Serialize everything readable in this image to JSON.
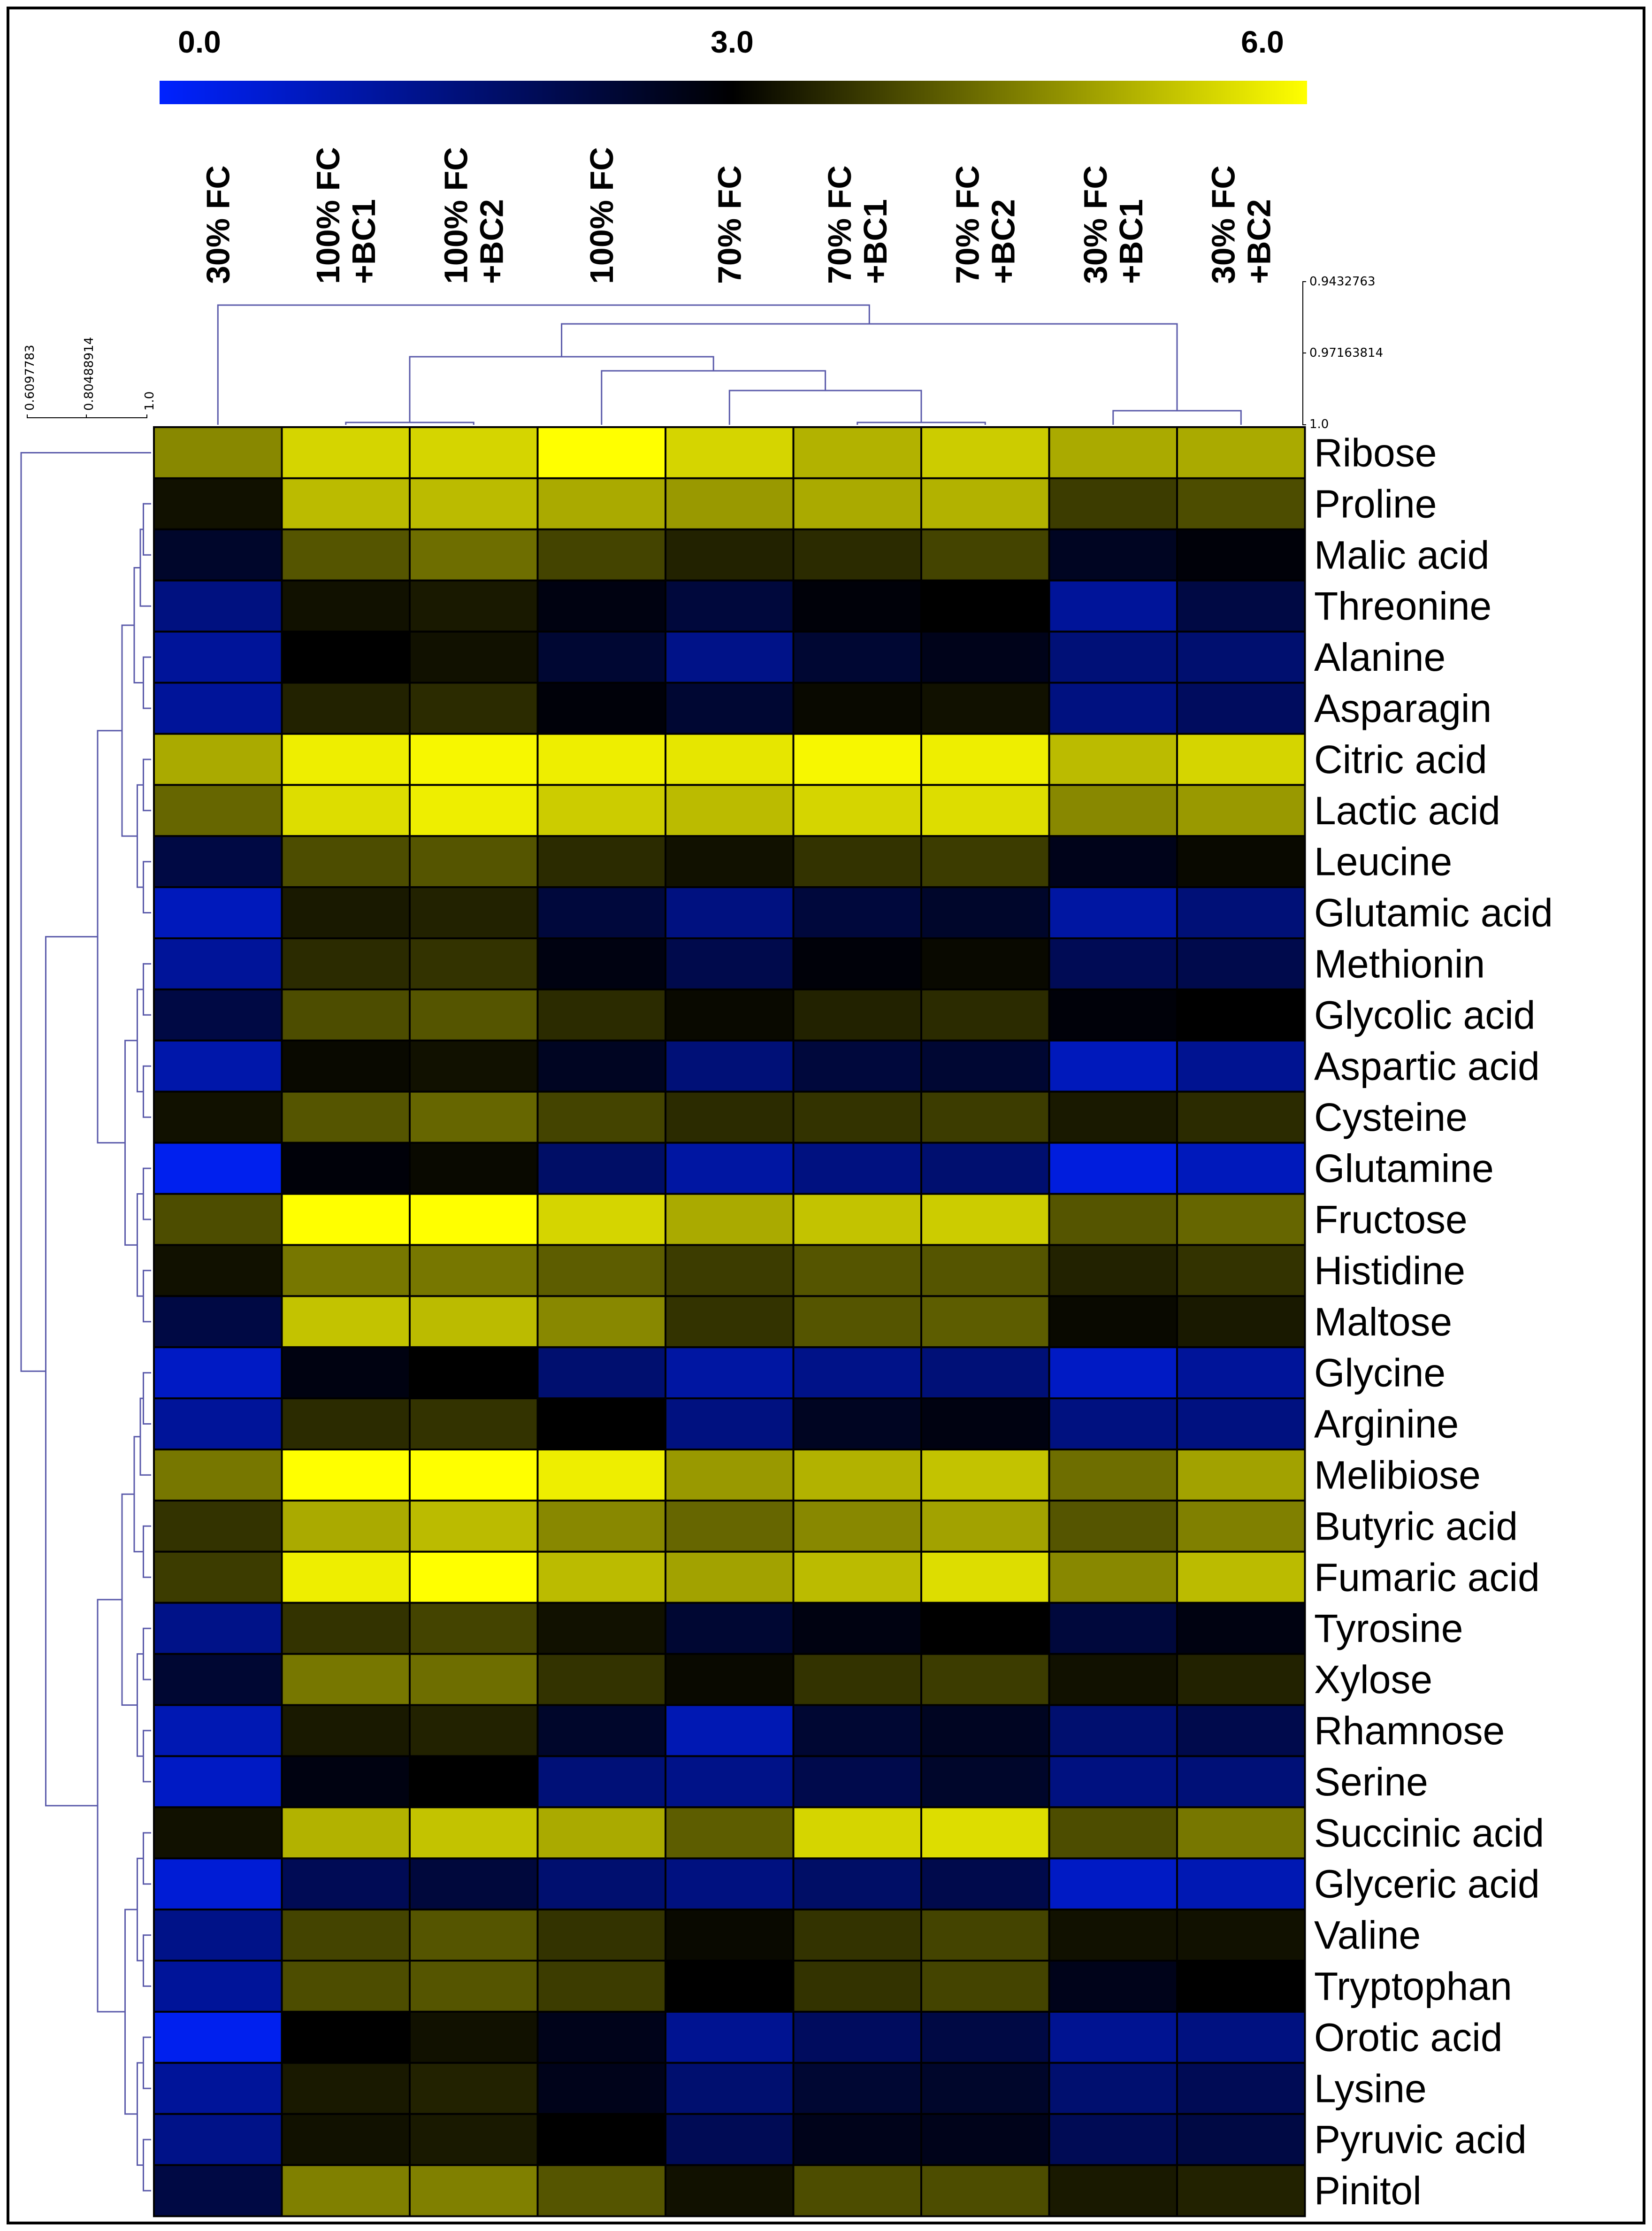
{
  "chart_data": {
    "type": "heatmap",
    "color_scale": {
      "min": 0.0,
      "mid": 3.0,
      "max": 6.0,
      "min_label": "0.0",
      "mid_label": "3.0",
      "max_label": "6.0",
      "min_color": "#0022ff",
      "mid_color": "#000000",
      "max_color": "#ffff00"
    },
    "columns": [
      [
        "30% FC"
      ],
      [
        "100% FC",
        "+BC1"
      ],
      [
        "100% FC",
        "+BC2"
      ],
      [
        "100% FC"
      ],
      [
        "70% FC"
      ],
      [
        "70% FC",
        "+BC1"
      ],
      [
        "70% FC",
        "+BC2"
      ],
      [
        "30% FC",
        "+BC1"
      ],
      [
        "30% FC",
        "+BC2"
      ]
    ],
    "rows": [
      "Ribose",
      "Proline",
      "Malic acid",
      "Threonine",
      "Alanine",
      "Asparagin",
      "Citric acid",
      "Lactic acid",
      "Leucine",
      "Glutamic acid",
      "Methionin",
      "Glycolic acid",
      "Aspartic acid",
      "Cysteine",
      "Glutamine",
      "Fructose",
      "Histidine",
      "Maltose",
      "Glycine",
      "Arginine",
      "Melibiose",
      "Butyric acid",
      "Fumaric acid",
      "Tyrosine",
      "Xylose",
      "Rhamnose",
      "Serine",
      "Succinic acid",
      "Glyceric acid",
      "Valine",
      "Tryptophan",
      "Orotic acid",
      "Lysine",
      "Pyruvic acid",
      "Pinitol"
    ],
    "values": [
      [
        4.6,
        5.5,
        5.5,
        6.0,
        5.5,
        5.1,
        5.4,
        5.0,
        5.0
      ],
      [
        3.2,
        5.2,
        5.2,
        5.0,
        4.8,
        5.0,
        5.1,
        3.7,
        3.9
      ],
      [
        2.5,
        4.0,
        4.3,
        3.8,
        3.4,
        3.5,
        3.8,
        2.6,
        2.9
      ],
      [
        1.5,
        3.2,
        3.3,
        2.8,
        2.3,
        2.9,
        3.0,
        1.2,
        2.2
      ],
      [
        1.2,
        3.0,
        3.2,
        2.4,
        1.4,
        2.4,
        2.7,
        1.6,
        1.7
      ],
      [
        1.2,
        3.4,
        3.5,
        2.9,
        2.4,
        3.1,
        3.2,
        1.5,
        1.9
      ],
      [
        5.0,
        5.8,
        5.9,
        5.8,
        5.7,
        5.9,
        5.8,
        5.2,
        5.5
      ],
      [
        4.2,
        5.6,
        5.8,
        5.4,
        5.2,
        5.5,
        5.6,
        4.6,
        4.8
      ],
      [
        2.2,
        3.9,
        4.0,
        3.5,
        3.2,
        3.6,
        3.7,
        2.7,
        3.1
      ],
      [
        0.8,
        3.3,
        3.4,
        2.3,
        1.5,
        2.3,
        2.5,
        1.1,
        1.6
      ],
      [
        1.2,
        3.5,
        3.6,
        2.8,
        2.1,
        2.9,
        3.1,
        2.0,
        2.1
      ],
      [
        2.2,
        3.9,
        4.0,
        3.5,
        3.1,
        3.4,
        3.5,
        2.9,
        3.0
      ],
      [
        1.0,
        3.1,
        3.2,
        2.6,
        1.6,
        2.3,
        2.4,
        0.8,
        1.3
      ],
      [
        3.2,
        4.0,
        4.2,
        3.8,
        3.5,
        3.6,
        3.7,
        3.3,
        3.5
      ],
      [
        0.2,
        2.9,
        3.1,
        1.8,
        1.1,
        1.5,
        1.7,
        0.4,
        0.8
      ],
      [
        3.9,
        6.0,
        6.0,
        5.5,
        5.0,
        5.3,
        5.4,
        4.0,
        4.2
      ],
      [
        3.2,
        4.4,
        4.4,
        4.1,
        3.7,
        4.0,
        4.0,
        3.4,
        3.6
      ],
      [
        2.2,
        5.3,
        5.2,
        4.6,
        3.6,
        4.0,
        4.1,
        3.1,
        3.3
      ],
      [
        0.7,
        2.8,
        3.0,
        1.7,
        1.1,
        1.4,
        1.6,
        0.7,
        1.2
      ],
      [
        1.2,
        3.5,
        3.6,
        3.0,
        1.5,
        2.6,
        2.8,
        1.5,
        1.5
      ],
      [
        4.4,
        6.0,
        6.0,
        5.8,
        4.8,
        5.1,
        5.3,
        4.3,
        4.9
      ],
      [
        3.6,
        5.0,
        5.2,
        4.6,
        4.2,
        4.6,
        4.9,
        4.0,
        4.5
      ],
      [
        3.7,
        5.8,
        6.0,
        5.2,
        4.9,
        5.2,
        5.6,
        4.6,
        5.2
      ],
      [
        1.4,
        3.6,
        3.8,
        3.2,
        2.4,
        2.8,
        3.0,
        2.3,
        2.8
      ],
      [
        2.4,
        4.4,
        4.3,
        3.6,
        3.1,
        3.6,
        3.7,
        3.2,
        3.4
      ],
      [
        0.9,
        3.3,
        3.4,
        2.5,
        0.9,
        2.4,
        2.6,
        1.7,
        2.1
      ],
      [
        0.7,
        2.8,
        3.0,
        1.6,
        1.4,
        2.1,
        2.5,
        1.5,
        1.6
      ],
      [
        3.2,
        5.1,
        5.3,
        5.0,
        4.1,
        5.5,
        5.6,
        3.9,
        4.4
      ],
      [
        0.5,
        2.0,
        2.3,
        1.7,
        1.5,
        1.8,
        2.1,
        0.7,
        0.9
      ],
      [
        1.4,
        3.8,
        4.0,
        3.6,
        3.1,
        3.6,
        3.8,
        3.2,
        3.2
      ],
      [
        1.2,
        3.9,
        4.0,
        3.7,
        3.0,
        3.6,
        3.8,
        2.7,
        3.0
      ],
      [
        0.2,
        3.0,
        3.2,
        2.7,
        1.3,
        1.9,
        2.2,
        1.3,
        1.5
      ],
      [
        1.2,
        3.3,
        3.4,
        2.7,
        1.7,
        2.4,
        2.5,
        1.7,
        2.0
      ],
      [
        1.4,
        3.2,
        3.3,
        3.0,
        2.0,
        2.7,
        2.7,
        2.0,
        2.2
      ],
      [
        2.2,
        4.5,
        4.5,
        4.0,
        3.2,
        3.9,
        3.9,
        3.3,
        3.4
      ]
    ],
    "column_dendrogram_ticks": [
      "0.9432763",
      "0.97163814",
      "1.0"
    ],
    "row_dendrogram_ticks": [
      "0.6097783",
      "0.80488914",
      "1.0"
    ]
  }
}
